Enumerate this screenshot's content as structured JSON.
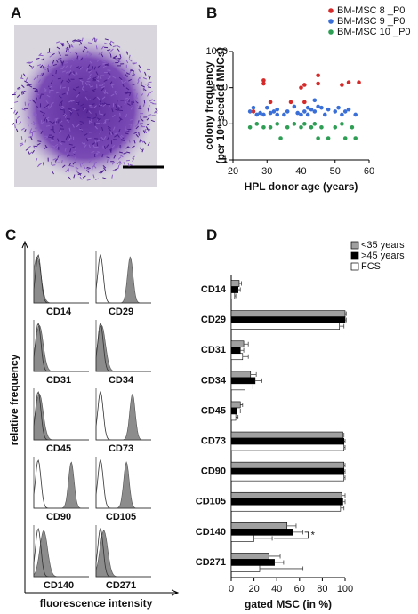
{
  "panel_labels": [
    "A",
    "B",
    "C",
    "D"
  ],
  "chart_data": [
    {
      "type": "scatter",
      "xlabel": "HPL donor age (years)",
      "ylabel": [
        "colony frequency",
        "(per 10⁶ seeded MNCs)"
      ],
      "xlim": [
        20,
        60
      ],
      "xticks": [
        20,
        30,
        40,
        50,
        60
      ],
      "ylim": [
        1,
        1000
      ],
      "yticks": [
        1,
        10,
        100,
        1000
      ],
      "log_y": true,
      "legend": "top-right",
      "series": [
        {
          "name": "BM-MSC 8 _P0",
          "color": "#d42a2a",
          "x": [
            26,
            29,
            29,
            31,
            37,
            40,
            41,
            41,
            45,
            45,
            52,
            54,
            57
          ],
          "values": [
            22,
            160,
            130,
            40,
            40,
            100,
            120,
            40,
            220,
            130,
            120,
            140,
            140
          ]
        },
        {
          "name": "BM-MSC 9 _P0",
          "color": "#3a6fd8",
          "x": [
            25,
            26,
            27,
            28,
            29,
            30,
            31,
            32,
            33,
            33,
            35,
            36,
            38,
            39,
            40,
            41,
            42,
            42,
            43,
            44,
            44,
            45,
            46,
            47,
            48,
            50,
            51,
            52,
            53,
            54,
            56
          ],
          "values": [
            22,
            28,
            18,
            20,
            18,
            28,
            20,
            22,
            25,
            18,
            18,
            22,
            30,
            20,
            18,
            22,
            18,
            28,
            25,
            22,
            45,
            30,
            28,
            18,
            25,
            22,
            28,
            18,
            22,
            25,
            18
          ]
        },
        {
          "name": "BM-MSC 10 _P0",
          "color": "#2e9e55",
          "x": [
            25,
            27,
            29,
            31,
            33,
            34,
            36,
            38,
            40,
            41,
            43,
            44,
            45,
            46,
            48,
            50,
            52,
            53,
            55,
            56
          ],
          "values": [
            8,
            10,
            8,
            8,
            10,
            4,
            8,
            10,
            8,
            10,
            8,
            10,
            4,
            8,
            4,
            8,
            10,
            4,
            8,
            4
          ]
        }
      ]
    },
    {
      "type": "overlay-histogram",
      "ylabel": "relative frequency",
      "xlabel": "fluorescence intensity",
      "categories": [
        "CD14",
        "CD29",
        "CD31",
        "CD34",
        "CD45",
        "CD73",
        "CD90",
        "CD105",
        "CD140",
        "CD271"
      ],
      "values": [
        0.06,
        0.62,
        0.1,
        0.1,
        0.1,
        0.66,
        0.68,
        0.55,
        0.18,
        0.14
      ]
    },
    {
      "type": "bar",
      "orientation": "horizontal",
      "categories": [
        "CD14",
        "CD29",
        "CD31",
        "CD34",
        "CD45",
        "CD73",
        "CD90",
        "CD105",
        "CD140",
        "CD271"
      ],
      "xlabel": "gated MSC (in %)",
      "xlim": [
        0,
        100
      ],
      "xticks": [
        0,
        20,
        40,
        60,
        80,
        100
      ],
      "legend": "top-right",
      "annotation": {
        "text": "*",
        "category": "CD140"
      },
      "series": [
        {
          "name": "<35 years",
          "color": "#a0a0a0",
          "values": [
            7,
            100,
            11,
            17,
            8,
            98,
            99,
            97,
            49,
            33
          ],
          "errors": [
            2,
            1,
            4,
            5,
            2,
            1,
            1,
            3,
            8,
            10
          ]
        },
        {
          "name": ">45 years",
          "color": "#000000",
          "values": [
            6,
            100,
            8,
            21,
            5,
            99,
            99,
            98,
            54,
            38
          ],
          "errors": [
            2,
            1,
            3,
            6,
            3,
            1,
            1,
            2,
            9,
            8
          ]
        },
        {
          "name": "FCS",
          "color": "#ffffff",
          "values": [
            3,
            95,
            10,
            12,
            4,
            99,
            99,
            96,
            20,
            25
          ],
          "errors": [
            1,
            4,
            5,
            7,
            2,
            1,
            1,
            3,
            16,
            38
          ]
        }
      ]
    }
  ]
}
